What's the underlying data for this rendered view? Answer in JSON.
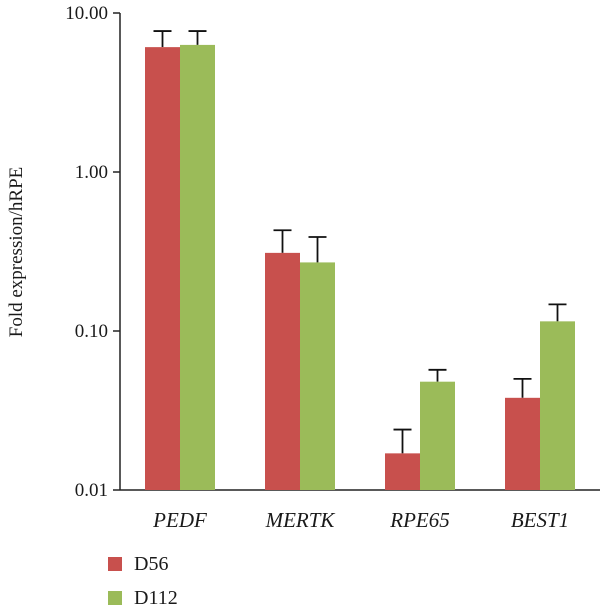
{
  "chart_data": {
    "type": "bar",
    "scale": "log",
    "ylabel": "Fold expression/hRPE",
    "ylim": [
      0.01,
      10
    ],
    "yticks": [
      "10.00",
      "1.00",
      "0.10",
      "0.01"
    ],
    "ytick_values": [
      10,
      1,
      0.1,
      0.01
    ],
    "categories": [
      "PEDF",
      "MERTK",
      "RPE65",
      "BEST1"
    ],
    "categories_italic": true,
    "grid": false,
    "legend_position": "bottom-left",
    "series": [
      {
        "name": "D56",
        "color": "#c8504d",
        "values": [
          6.1,
          0.31,
          0.017,
          0.038
        ],
        "errors_upper": [
          7.7,
          0.43,
          0.024,
          0.05
        ]
      },
      {
        "name": "D112",
        "color": "#9bbb59",
        "values": [
          6.3,
          0.27,
          0.048,
          0.115
        ],
        "errors_upper": [
          7.7,
          0.39,
          0.057,
          0.147
        ]
      }
    ]
  }
}
